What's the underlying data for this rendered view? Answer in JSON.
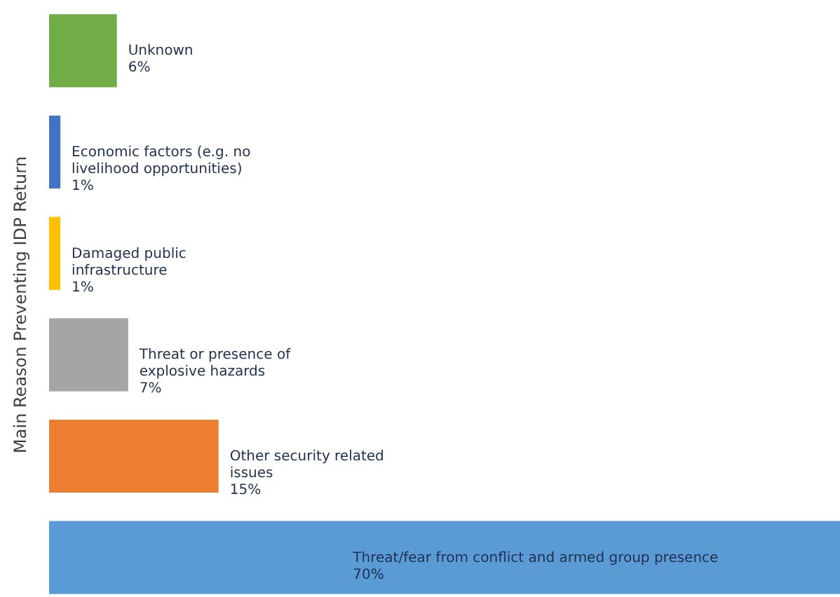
{
  "chart_data": {
    "type": "bar",
    "orientation": "horizontal",
    "ylabel": "Main Reason Preventing IDP Return",
    "categories": [
      "Unknown",
      "Economic factors (e.g. no livelihood opportunities)",
      "Damaged public infrastructure",
      "Threat or presence of explosive hazards",
      "Other security related issues",
      "Threat/fear from conflict and armed group presence"
    ],
    "values": [
      6,
      1,
      1,
      7,
      15,
      70
    ],
    "colors": [
      "#70ad47",
      "#4472c4",
      "#ffc000",
      "#a5a5a5",
      "#ed7d31",
      "#5b9bd5"
    ],
    "value_labels": [
      "6%",
      "1%",
      "1%",
      "7%",
      "15%",
      "70%"
    ],
    "tick_labels": false
  }
}
